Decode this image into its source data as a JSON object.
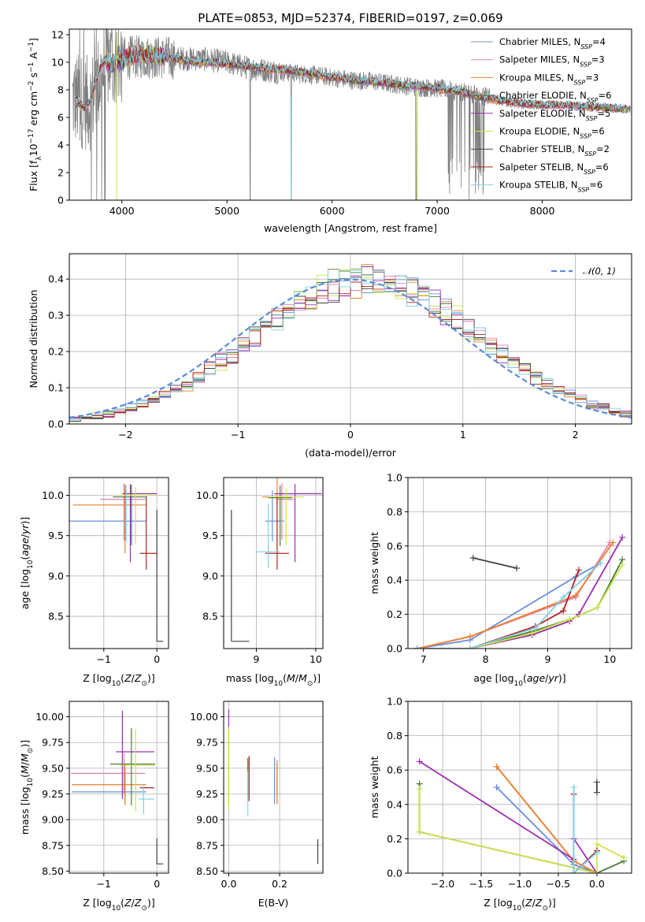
{
  "figure_title": "PLATE=0853, MJD=52374, FIBERID=0197, z=0.069",
  "colors": {
    "Chabrier MILES": "#6a8fdc",
    "Salpeter MILES": "#e57fb8",
    "Kroupa MILES": "#e9812a",
    "Chabrier ELODIE": "#4a7a3a",
    "Salpeter ELODIE": "#9b2fb0",
    "Kroupa ELODIE": "#c8e64a",
    "Chabrier STELIB": "#444444",
    "Salpeter STELIB": "#b22222",
    "Kroupa STELIB": "#7fd3e6",
    "data": "#808080",
    "normal_curve": "#5b8bd6",
    "grid": "#b0b0b0"
  },
  "chart_data": [
    {
      "id": "spectrum",
      "type": "line",
      "xlabel": "wavelength [Angstrom, rest frame]",
      "ylabel": "Flux [f_λ 10^-17 erg cm^-2 s^-1 A^-1]",
      "xlim": [
        3500,
        8850
      ],
      "ylim": [
        0,
        12.4
      ],
      "xticks": [
        4000,
        5000,
        6000,
        7000,
        8000
      ],
      "yticks": [
        0,
        2,
        4,
        6,
        8,
        10,
        12
      ],
      "grid": false,
      "legend_position": "upper right",
      "legend": [
        "Chabrier MILES, N_SSP=4",
        "Salpeter MILES, N_SSP=3",
        "Kroupa MILES, N_SSP=3",
        "Chabrier ELODIE, N_SSP=6",
        "Salpeter ELODIE, N_SSP=5",
        "Kroupa ELODIE, N_SSP=6",
        "Chabrier STELIB, N_SSP=2",
        "Salpeter STELIB, N_SSP=6",
        "Kroupa STELIB, N_SSP=6"
      ],
      "data_envelope": {
        "x": [
          3550,
          3700,
          3850,
          4000,
          4200,
          4500,
          4800,
          5000,
          5200,
          5500,
          5800,
          6000,
          6200,
          6400,
          6600,
          6800,
          7000,
          7200,
          7400,
          7600,
          7800,
          8000,
          8200,
          8400,
          8600,
          8800
        ],
        "y": [
          7.3,
          7.0,
          10.0,
          10.3,
          10.4,
          10.3,
          10.2,
          10.0,
          9.6,
          9.3,
          9.1,
          8.9,
          8.7,
          8.6,
          8.4,
          8.2,
          8.1,
          7.9,
          7.6,
          7.3,
          7.1,
          7.0,
          6.9,
          6.8,
          6.7,
          6.6
        ]
      },
      "model_x": [
        3550,
        3650,
        3700,
        3800,
        3850,
        3900,
        4000,
        4100,
        4200,
        4400,
        4600,
        4800,
        5000,
        5200,
        5400,
        5600,
        5800,
        6000,
        6200,
        6400,
        6600,
        6800,
        7000,
        7200,
        7400,
        7600,
        7800,
        8000,
        8200,
        8400,
        8600,
        8800
      ],
      "model_y": [
        7.4,
        6.6,
        7.3,
        9.8,
        10.2,
        9.9,
        10.2,
        10.4,
        10.6,
        10.4,
        10.1,
        10.0,
        9.9,
        9.7,
        9.5,
        9.4,
        9.2,
        8.9,
        8.7,
        8.6,
        8.4,
        8.3,
        8.1,
        7.9,
        7.5,
        7.2,
        7.0,
        6.9,
        6.9,
        6.8,
        6.7,
        6.6
      ]
    },
    {
      "id": "residuals",
      "type": "step",
      "xlabel": "(data-model)/error",
      "ylabel": "Normed distribution",
      "xlim": [
        -2.5,
        2.5
      ],
      "ylim": [
        0,
        0.47
      ],
      "xticks": [
        -2,
        -1,
        0,
        1,
        2
      ],
      "yticks": [
        0.0,
        0.1,
        0.2,
        0.3,
        0.4
      ],
      "grid": true,
      "legend_position": "upper right",
      "legend": [
        "𝒩(0, 1)"
      ],
      "bin_width": 0.1
    },
    {
      "id": "age_vs_Z",
      "type": "errorbar",
      "xlabel": "Z [log10(Z/Z⊙)]",
      "ylabel": "age [log10(age/yr)]",
      "xlim": [
        -1.65,
        0.22
      ],
      "ylim": [
        8.1,
        10.22
      ],
      "xticks": [
        -1,
        0
      ],
      "yticks": [
        8.5,
        9.0,
        9.5,
        10.0
      ],
      "grid": true,
      "points": [
        {
          "model": "Chabrier MILES",
          "x": -0.6,
          "y": 9.68,
          "xerr": [
            1.35,
            0.4
          ],
          "yerr": [
            0.25,
            0.38
          ]
        },
        {
          "model": "Salpeter MILES",
          "x": -0.62,
          "y": 9.95,
          "xerr": [
            0.45,
            0.4
          ],
          "yerr": [
            0.5,
            0.2
          ]
        },
        {
          "model": "Kroupa MILES",
          "x": -0.6,
          "y": 9.88,
          "xerr": [
            0.98,
            0.4
          ],
          "yerr": [
            0.6,
            0.25
          ]
        },
        {
          "model": "Chabrier ELODIE",
          "x": -0.48,
          "y": 9.98,
          "xerr": [
            0.35,
            0.3
          ],
          "yerr": [
            0.6,
            0.15
          ]
        },
        {
          "model": "Salpeter ELODIE",
          "x": -0.5,
          "y": 10.02,
          "xerr": [
            0.15,
            0.5
          ],
          "yerr": [
            0.85,
            0.12
          ]
        },
        {
          "model": "Kroupa ELODIE",
          "x": -0.4,
          "y": 10.0,
          "xerr": [
            0.32,
            0.35
          ],
          "yerr": [
            0.6,
            0.1
          ]
        },
        {
          "model": "Chabrier STELIB",
          "x": 0.0,
          "y": 8.19,
          "xerr": [
            0.0,
            0.12
          ],
          "yerr": [
            0.0,
            1.63
          ]
        },
        {
          "model": "Salpeter STELIB",
          "x": -0.2,
          "y": 9.28,
          "xerr": [
            0.12,
            0.2
          ],
          "yerr": [
            0.2,
            0.7
          ]
        },
        {
          "model": "Kroupa STELIB",
          "x": -0.58,
          "y": 9.63,
          "xerr": [
            0.05,
            0.03
          ],
          "yerr": [
            0.2,
            0.5
          ]
        }
      ]
    },
    {
      "id": "age_vs_mass",
      "type": "errorbar",
      "xlabel": "mass [log10(M/M⊙)]",
      "ylabel": "",
      "xlim": [
        8.45,
        10.12
      ],
      "ylim": [
        8.1,
        10.22
      ],
      "xticks": [
        9,
        10
      ],
      "yticks": [
        8.5,
        9.0,
        9.5,
        10.0
      ],
      "grid": true,
      "points": [
        {
          "model": "Chabrier MILES",
          "x": 9.27,
          "y": 9.68,
          "xerr": [
            0.12,
            0.2
          ],
          "yerr": [
            0.25,
            0.38
          ]
        },
        {
          "model": "Salpeter MILES",
          "x": 9.43,
          "y": 9.95,
          "xerr": [
            0.1,
            0.2
          ],
          "yerr": [
            0.5,
            0.2
          ]
        },
        {
          "model": "Kroupa MILES",
          "x": 9.35,
          "y": 9.98,
          "xerr": [
            0.25,
            0.25
          ],
          "yerr": [
            0.6,
            0.25
          ]
        },
        {
          "model": "Chabrier ELODIE",
          "x": 9.4,
          "y": 9.97,
          "xerr": [
            0.2,
            0.2
          ],
          "yerr": [
            0.6,
            0.15
          ]
        },
        {
          "model": "Salpeter ELODIE",
          "x": 9.65,
          "y": 10.02,
          "xerr": [
            0.35,
            0.45
          ],
          "yerr": [
            0.85,
            0.12
          ]
        },
        {
          "model": "Kroupa ELODIE",
          "x": 9.5,
          "y": 9.98,
          "xerr": [
            0.3,
            0.3
          ],
          "yerr": [
            0.6,
            0.1
          ]
        },
        {
          "model": "Chabrier STELIB",
          "x": 8.58,
          "y": 8.19,
          "xerr": [
            0.0,
            0.3
          ],
          "yerr": [
            0.0,
            1.63
          ]
        },
        {
          "model": "Salpeter STELIB",
          "x": 9.35,
          "y": 9.28,
          "xerr": [
            0.2,
            0.2
          ],
          "yerr": [
            0.2,
            0.7
          ]
        },
        {
          "model": "Kroupa STELIB",
          "x": 9.2,
          "y": 9.3,
          "xerr": [
            0.2,
            0.2
          ],
          "yerr": [
            0.2,
            0.6
          ]
        }
      ]
    },
    {
      "id": "weight_vs_age",
      "type": "line",
      "xlabel": "age [log10(age/yr)]",
      "ylabel": "mass weight",
      "xlim": [
        6.75,
        10.35
      ],
      "ylim": [
        0,
        1.0
      ],
      "xticks": [
        7,
        8,
        9,
        10
      ],
      "yticks": [
        0.0,
        0.2,
        0.4,
        0.6,
        0.8,
        1.0
      ],
      "grid": true,
      "series": [
        {
          "name": "Chabrier MILES",
          "x": [
            6.9,
            7.75,
            9.45,
            9.85
          ],
          "y": [
            0.0,
            0.05,
            0.42,
            0.5
          ]
        },
        {
          "name": "Salpeter MILES",
          "x": [
            6.9,
            7.75,
            9.45,
            10.0
          ],
          "y": [
            0.0,
            0.07,
            0.3,
            0.62
          ]
        },
        {
          "name": "Kroupa MILES",
          "x": [
            6.9,
            7.75,
            9.45,
            10.05
          ],
          "y": [
            0.0,
            0.07,
            0.31,
            0.62
          ]
        },
        {
          "name": "Chabrier ELODIE",
          "x": [
            6.9,
            7.75,
            8.75,
            9.35,
            9.8,
            10.2
          ],
          "y": [
            0.0,
            0.0,
            0.1,
            0.17,
            0.24,
            0.52
          ]
        },
        {
          "name": "Salpeter ELODIE",
          "x": [
            6.9,
            7.75,
            8.75,
            9.35,
            9.5,
            10.2
          ],
          "y": [
            0.0,
            0.0,
            0.08,
            0.16,
            0.2,
            0.65
          ]
        },
        {
          "name": "Kroupa ELODIE",
          "x": [
            6.9,
            7.75,
            8.75,
            9.35,
            9.8,
            10.2
          ],
          "y": [
            0.0,
            0.0,
            0.09,
            0.17,
            0.24,
            0.49
          ]
        },
        {
          "name": "Chabrier STELIB",
          "x": [
            7.8,
            8.5
          ],
          "y": [
            0.53,
            0.47
          ]
        },
        {
          "name": "Salpeter STELIB",
          "x": [
            6.9,
            7.75,
            8.8,
            9.25,
            9.5
          ],
          "y": [
            0.0,
            0.0,
            0.13,
            0.22,
            0.46
          ]
        },
        {
          "name": "Kroupa STELIB",
          "x": [
            6.9,
            7.75,
            8.8,
            9.25,
            9.85
          ],
          "y": [
            0.0,
            0.0,
            0.12,
            0.3,
            0.5
          ]
        }
      ]
    },
    {
      "id": "mass_vs_Z",
      "type": "errorbar",
      "xlabel": "Z [log10(Z/Z⊙)]",
      "ylabel": "mass [log10(M/M⊙)]",
      "xlim": [
        -1.65,
        0.22
      ],
      "ylim": [
        8.48,
        10.15
      ],
      "xticks": [
        -1,
        0
      ],
      "yticks": [
        8.5,
        8.75,
        9.0,
        9.25,
        9.5,
        9.75,
        10.0
      ],
      "grid": true,
      "points": [
        {
          "model": "Chabrier MILES",
          "x": -0.6,
          "y": 9.27,
          "xerr": [
            1.0,
            0.4
          ],
          "yerr": [
            0.1,
            0.2
          ]
        },
        {
          "model": "Salpeter MILES",
          "x": -0.62,
          "y": 9.45,
          "xerr": [
            1.0,
            0.4
          ],
          "yerr": [
            0.2,
            0.2
          ]
        },
        {
          "model": "Kroupa MILES",
          "x": -0.6,
          "y": 9.34,
          "xerr": [
            1.0,
            0.4
          ],
          "yerr": [
            0.2,
            0.2
          ]
        },
        {
          "model": "Chabrier ELODIE",
          "x": -0.48,
          "y": 9.54,
          "xerr": [
            0.4,
            0.45
          ],
          "yerr": [
            0.4,
            0.35
          ]
        },
        {
          "model": "Salpeter ELODIE",
          "x": -0.65,
          "y": 9.66,
          "xerr": [
            0.12,
            0.6
          ],
          "yerr": [
            0.46,
            0.4
          ]
        },
        {
          "model": "Kroupa ELODIE",
          "x": -0.4,
          "y": 9.53,
          "xerr": [
            0.3,
            0.35
          ],
          "yerr": [
            0.45,
            0.35
          ]
        },
        {
          "model": "Chabrier STELIB",
          "x": 0.0,
          "y": 8.57,
          "xerr": [
            0.0,
            0.12
          ],
          "yerr": [
            0.0,
            0.25
          ]
        },
        {
          "model": "Salpeter STELIB",
          "x": -0.2,
          "y": 9.31,
          "xerr": [
            0.12,
            0.15
          ],
          "yerr": [
            0.0,
            0.0
          ]
        },
        {
          "model": "Kroupa STELIB",
          "x": -0.25,
          "y": 9.2,
          "xerr": [
            0.1,
            0.2
          ],
          "yerr": [
            0.15,
            0.15
          ]
        }
      ]
    },
    {
      "id": "mass_vs_EBV",
      "type": "errorbar",
      "xlabel": "E(B-V)",
      "ylabel": "",
      "xlim": [
        -0.02,
        0.37
      ],
      "ylim": [
        8.48,
        10.15
      ],
      "xticks": [
        0.0,
        0.2
      ],
      "yticks": [
        8.5,
        8.75,
        9.0,
        9.25,
        9.5,
        9.75,
        10.0
      ],
      "grid": true,
      "points": [
        {
          "model": "Chabrier MILES",
          "x": 0.18,
          "y": 9.38,
          "xerr": [
            0,
            0
          ],
          "yerr": [
            0.23,
            0.23
          ]
        },
        {
          "model": "Salpeter MILES",
          "x": 0.19,
          "y": 9.38,
          "xerr": [
            0,
            0
          ],
          "yerr": [
            0.2,
            0.2
          ]
        },
        {
          "model": "Kroupa MILES",
          "x": 0.19,
          "y": 9.35,
          "xerr": [
            0,
            0
          ],
          "yerr": [
            0.2,
            0.2
          ]
        },
        {
          "model": "Chabrier ELODIE",
          "x": 0.075,
          "y": 9.4,
          "xerr": [
            0,
            0
          ],
          "yerr": [
            0.2,
            0.2
          ]
        },
        {
          "model": "Salpeter ELODIE",
          "x": 0.0,
          "y": 9.62,
          "xerr": [
            0,
            0
          ],
          "yerr": [
            0.45,
            0.45
          ]
        },
        {
          "model": "Kroupa ELODIE",
          "x": 0.0,
          "y": 9.5,
          "xerr": [
            0,
            0
          ],
          "yerr": [
            0.4,
            0.4
          ]
        },
        {
          "model": "Chabrier STELIB",
          "x": 0.35,
          "y": 8.69,
          "xerr": [
            0,
            0
          ],
          "yerr": [
            0.12,
            0.12
          ]
        },
        {
          "model": "Salpeter STELIB",
          "x": 0.08,
          "y": 9.4,
          "xerr": [
            0,
            0
          ],
          "yerr": [
            0.22,
            0.22
          ]
        },
        {
          "model": "Kroupa STELIB",
          "x": 0.075,
          "y": 9.25,
          "xerr": [
            0,
            0
          ],
          "yerr": [
            0.22,
            0.22
          ]
        }
      ]
    },
    {
      "id": "weight_vs_Z",
      "type": "line",
      "xlabel": "Z [log10(Z/Z⊙)]",
      "ylabel": "mass weight",
      "xlim": [
        -2.45,
        0.45
      ],
      "ylim": [
        0,
        1.0
      ],
      "xticks": [
        -2.0,
        -1.5,
        -1.0,
        -0.5,
        0.0
      ],
      "yticks": [
        0.0,
        0.2,
        0.4,
        0.6,
        0.8,
        1.0
      ],
      "grid": true,
      "series": [
        {
          "name": "Chabrier MILES",
          "x": [
            -1.3,
            -0.3,
            0.0
          ],
          "y": [
            0.5,
            0.05,
            0.0
          ]
        },
        {
          "name": "Salpeter MILES",
          "x": [
            -1.3,
            -0.3,
            0.0
          ],
          "y": [
            0.62,
            0.07,
            0.0
          ]
        },
        {
          "name": "Kroupa MILES",
          "x": [
            -1.3,
            -0.3,
            0.0
          ],
          "y": [
            0.62,
            0.07,
            0.0
          ]
        },
        {
          "name": "Chabrier ELODIE",
          "x": [
            -2.3,
            -2.3,
            0.0,
            0.35
          ],
          "y": [
            0.52,
            0.24,
            0.0,
            0.07
          ]
        },
        {
          "name": "Salpeter ELODIE",
          "x": [
            -2.3,
            -0.3,
            -0.3,
            0.0
          ],
          "y": [
            0.65,
            0.08,
            0.2,
            0.0
          ]
        },
        {
          "name": "Kroupa ELODIE",
          "x": [
            -2.3,
            -2.3,
            0.0,
            0.0,
            0.35
          ],
          "y": [
            0.49,
            0.24,
            0.0,
            0.17,
            0.09
          ]
        },
        {
          "name": "Chabrier STELIB",
          "x": [
            0.0,
            0.0
          ],
          "y": [
            0.53,
            0.47
          ]
        },
        {
          "name": "Salpeter STELIB",
          "x": [
            -0.3,
            -0.3,
            0.0
          ],
          "y": [
            0.46,
            0.0,
            0.13
          ]
        },
        {
          "name": "Kroupa STELIB",
          "x": [
            -0.3,
            -0.3,
            0.0
          ],
          "y": [
            0.5,
            0.0,
            0.12
          ]
        }
      ]
    }
  ]
}
